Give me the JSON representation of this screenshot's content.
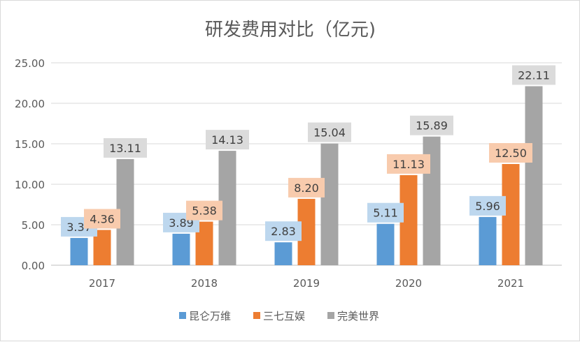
{
  "chart_data": {
    "type": "bar",
    "title": "研发费用对比（亿元)",
    "categories": [
      "2017",
      "2018",
      "2019",
      "2020",
      "2021"
    ],
    "series": [
      {
        "name": "昆仑万维",
        "color": "#5b9bd5",
        "label_bg": "#bdd7ee",
        "values": [
          3.37,
          3.89,
          2.83,
          5.11,
          5.96
        ]
      },
      {
        "name": "三七互娱",
        "color": "#ed7d31",
        "label_bg": "#f8cbad",
        "values": [
          4.36,
          5.38,
          8.2,
          11.13,
          12.5
        ]
      },
      {
        "name": "完美世界",
        "color": "#a5a5a5",
        "label_bg": "#dbdbdb",
        "values": [
          13.11,
          14.13,
          15.04,
          15.89,
          22.11
        ]
      }
    ],
    "ylim": [
      0,
      25
    ],
    "yticks": [
      "0.00",
      "5.00",
      "10.00",
      "15.00",
      "20.00",
      "25.00"
    ],
    "grid": true,
    "legend": "bottom"
  }
}
